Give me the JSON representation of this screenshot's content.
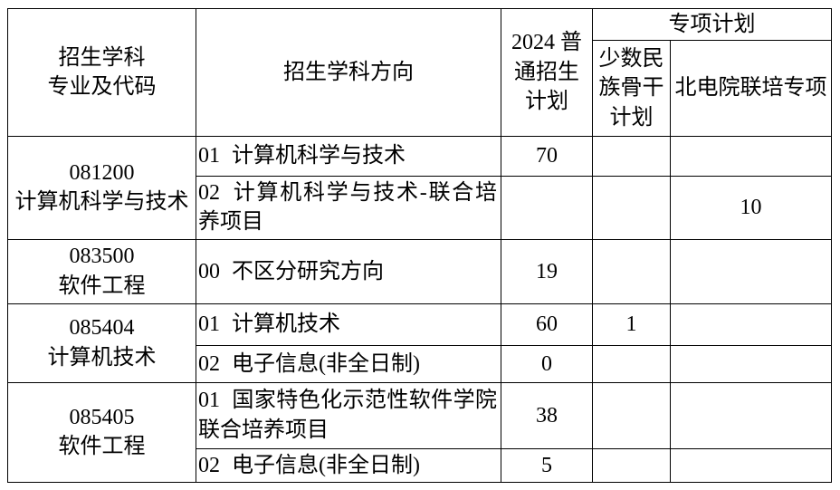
{
  "table": {
    "headers": {
      "program": "招生学科\n专业及代码",
      "direction": "招生学科方向",
      "general_plan": "2024 普\n通招生\n计划",
      "special_plan": "专项计划",
      "minority_backbone": "少数民\n族骨干\n计划",
      "joint_training": "北电院联培专项"
    },
    "programs": [
      {
        "code": "081200",
        "name": "计算机科学与技术",
        "directions": [
          {
            "no": "01",
            "text": "计算机科学与技术",
            "general": "70",
            "minority": "",
            "joint": ""
          },
          {
            "no": "02",
            "text": "计算机科学与技术-联合培养项目",
            "general": "",
            "minority": "",
            "joint": "10"
          }
        ]
      },
      {
        "code": "083500",
        "name": "软件工程",
        "directions": [
          {
            "no": "00",
            "text": "不区分研究方向",
            "general": "19",
            "minority": "",
            "joint": ""
          }
        ]
      },
      {
        "code": "085404",
        "name": "计算机技术",
        "directions": [
          {
            "no": "01",
            "text": "计算机技术",
            "general": "60",
            "minority": "1",
            "joint": ""
          },
          {
            "no": "02",
            "text": "电子信息(非全日制)",
            "general": "0",
            "minority": "",
            "joint": ""
          }
        ]
      },
      {
        "code": "085405",
        "name": "软件工程",
        "directions": [
          {
            "no": "01",
            "text": "国家特色化示范性软件学院联合培养项目",
            "general": "38",
            "minority": "",
            "joint": ""
          },
          {
            "no": "02",
            "text": "电子信息(非全日制)",
            "general": "5",
            "minority": "",
            "joint": ""
          }
        ]
      }
    ]
  }
}
